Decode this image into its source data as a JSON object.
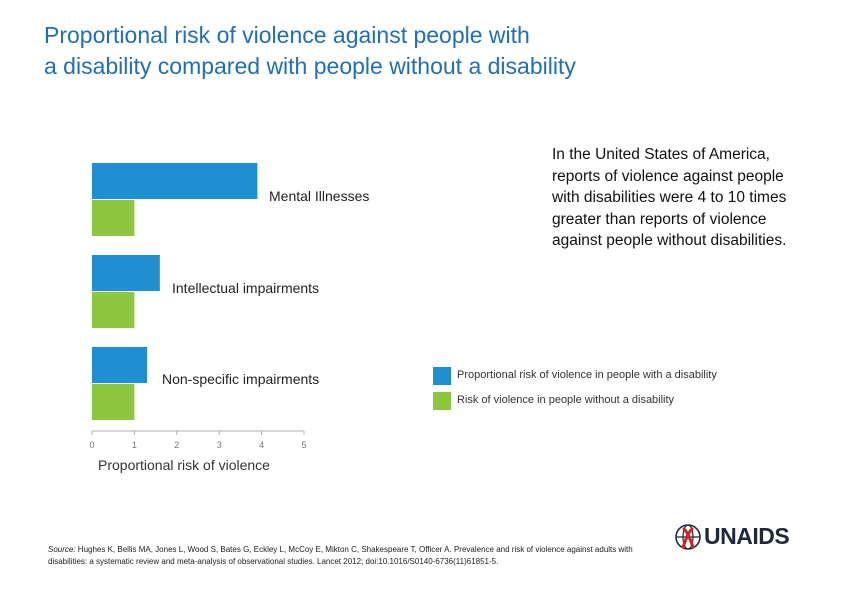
{
  "title": {
    "line1": "Proportional risk of violence against people with",
    "line2": "a disability compared with people without a disability"
  },
  "chart_data": {
    "type": "bar",
    "orientation": "horizontal",
    "categories": [
      "Mental Illnesses",
      "Intellectual impairments",
      "Non-specific impairments"
    ],
    "series": [
      {
        "name": "Proportional risk of violence in people with a disability",
        "color": "#1f8fd1",
        "values": [
          3.9,
          1.6,
          1.3
        ]
      },
      {
        "name": "Risk of violence in people without a disability",
        "color": "#8dc63f",
        "values": [
          1,
          1,
          1
        ]
      }
    ],
    "xlabel": "Proportional risk of violence",
    "xlim": [
      0,
      5
    ],
    "xticks": [
      "0",
      "1",
      "2",
      "3",
      "4",
      "5"
    ],
    "grid": false,
    "legend_position": "right"
  },
  "side_text": "In the United States of America, reports of violence against people with disabilities were 4 to 10 times greater than reports of violence against people without disabilities.",
  "source": {
    "lead": "Source:",
    "text": " Hughes K, Bellis MA, Jones L, Wood S, Bates G, Eckley L, McCoy E, Mikton C, Shakespeare T, Officer A. Prevalence and risk of violence against adults with disabilities: a systematic review and meta-analysis of observational studies. Lancet 2012; doi:10.1016/S0140-6736(11)61851-5."
  },
  "logo": {
    "text": "UNAIDS",
    "icon": "unaids-ribbon-globe-icon"
  }
}
